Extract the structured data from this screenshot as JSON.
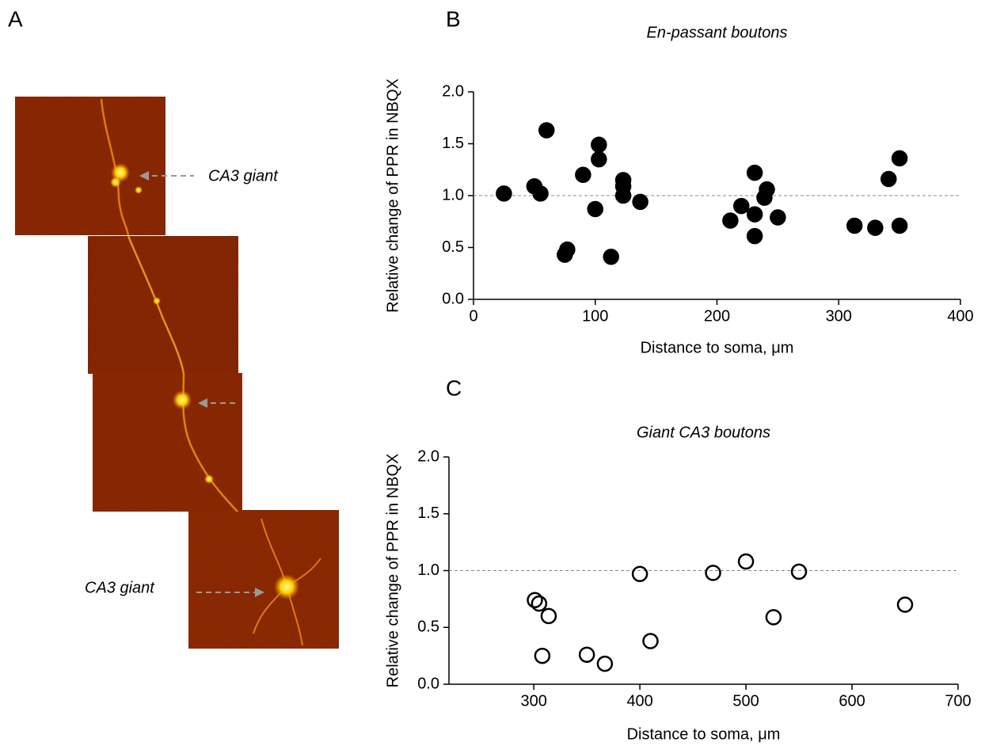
{
  "panel_labels": [
    "A",
    "B",
    "C"
  ],
  "image_annotations": [
    "CA3 giant",
    "CA3 giant"
  ],
  "chart_data": [
    {
      "type": "scatter",
      "title": "En-passant boutons",
      "xlabel": "Distance to soma, μm",
      "ylabel": "Relative change of PPR in NBQX",
      "x": [
        25,
        50,
        55,
        60,
        75,
        77,
        90,
        100,
        103,
        103,
        113,
        123,
        123,
        123,
        137,
        211,
        220,
        231,
        231,
        231,
        239,
        241,
        250,
        313,
        330,
        341,
        350,
        350
      ],
      "values": [
        1.02,
        1.09,
        1.02,
        1.63,
        0.43,
        0.48,
        1.2,
        0.87,
        1.49,
        1.35,
        0.41,
        1.15,
        1.09,
        1.0,
        0.94,
        0.76,
        0.9,
        1.22,
        0.82,
        0.61,
        0.98,
        1.06,
        0.79,
        0.71,
        0.69,
        1.16,
        1.36,
        0.71
      ],
      "marker_fill": "#000000",
      "marker_edge": "#000000",
      "xlim": [
        0,
        400
      ],
      "xticks": [
        0,
        100,
        200,
        300,
        400
      ],
      "ylim": [
        0,
        2
      ],
      "yticks": [
        {
          "value": 0,
          "label": "0.0"
        },
        0.5,
        {
          "value": 1,
          "label": "1.0"
        },
        1.5,
        {
          "value": 2,
          "label": "2.0"
        }
      ],
      "reference_line": 1
    },
    {
      "type": "scatter",
      "title": "Giant CA3 boutons",
      "xlabel": "Distance to soma, μm",
      "ylabel": "Relative change of PPR in NBQX",
      "x": [
        301,
        305,
        314,
        308,
        350,
        367,
        400,
        410,
        469,
        500,
        526,
        550,
        650
      ],
      "values": [
        0.74,
        0.71,
        0.6,
        0.25,
        0.26,
        0.18,
        0.97,
        0.38,
        0.98,
        1.08,
        0.59,
        0.99,
        0.7
      ],
      "marker_fill": "none",
      "marker_edge": "#000000",
      "xlim": [
        220,
        700
      ],
      "xticks": [
        300,
        400,
        500,
        600,
        700
      ],
      "ylim": [
        0,
        2
      ],
      "yticks": [
        {
          "value": 0,
          "label": "0.0"
        },
        0.5,
        {
          "value": 1,
          "label": "1.0"
        },
        1.5,
        {
          "value": 2,
          "label": "2.0"
        }
      ],
      "reference_line": 1
    }
  ]
}
